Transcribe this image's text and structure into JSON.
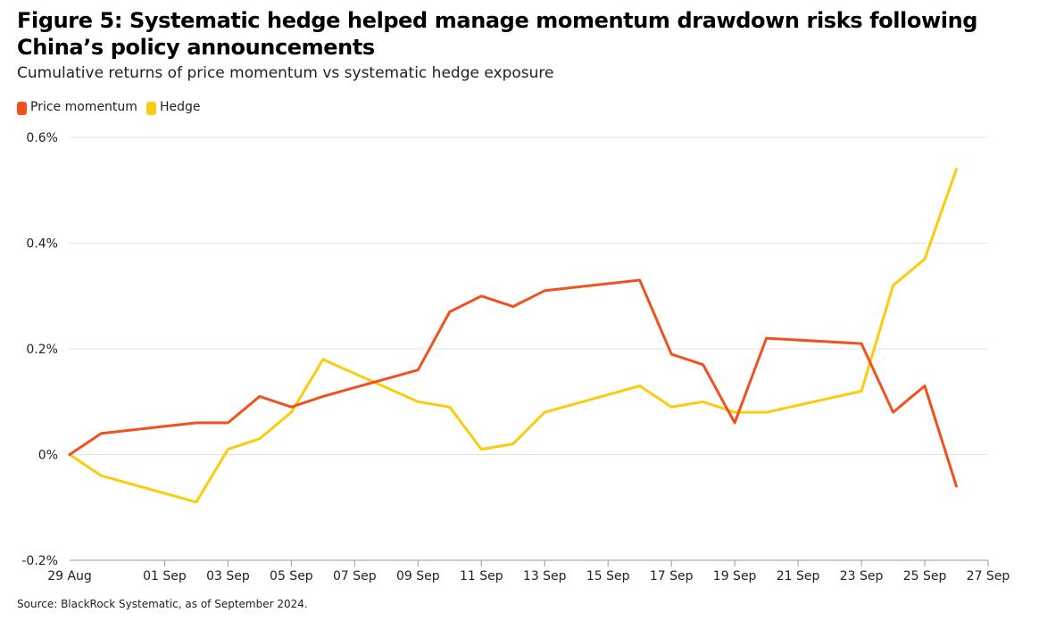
{
  "title": "Figure 5: Systematic hedge helped manage momentum drawdown risks following China’s policy announcements",
  "subtitle": "Cumulative returns of price momentum vs systematic hedge exposure",
  "source": "Source: BlackRock Systematic, as of September 2024.",
  "colors": {
    "momentum": "#f0511e",
    "hedge": "#fbcc0b",
    "grid": "#e3e3e3",
    "axis": "#9a9a9a"
  },
  "chart_data": {
    "type": "line",
    "title": "Figure 5: Systematic hedge helped manage momentum drawdown risks following China’s policy announcements",
    "subtitle": "Cumulative returns of price momentum vs systematic hedge exposure",
    "xlabel": "",
    "ylabel": "",
    "legend": "top-left",
    "grid": true,
    "ylim": [
      -0.2,
      0.6
    ],
    "xlim": [
      "2024-08-29",
      "2024-09-27"
    ],
    "yticks": [
      {
        "value": 0.6,
        "label": "0.6%"
      },
      {
        "value": 0.4,
        "label": "0.4%"
      },
      {
        "value": 0.2,
        "label": "0.2%"
      },
      {
        "value": 0.0,
        "label": "0%"
      },
      {
        "value": -0.2,
        "label": "-0.2%"
      }
    ],
    "xticks": [
      {
        "date": "2024-08-29",
        "label": "29 Aug"
      },
      {
        "date": "2024-09-01",
        "label": "01 Sep"
      },
      {
        "date": "2024-09-03",
        "label": "03 Sep"
      },
      {
        "date": "2024-09-05",
        "label": "05 Sep"
      },
      {
        "date": "2024-09-07",
        "label": "07 Sep"
      },
      {
        "date": "2024-09-09",
        "label": "09 Sep"
      },
      {
        "date": "2024-09-11",
        "label": "11 Sep"
      },
      {
        "date": "2024-09-13",
        "label": "13 Sep"
      },
      {
        "date": "2024-09-15",
        "label": "15 Sep"
      },
      {
        "date": "2024-09-17",
        "label": "17 Sep"
      },
      {
        "date": "2024-09-19",
        "label": "19 Sep"
      },
      {
        "date": "2024-09-21",
        "label": "21 Sep"
      },
      {
        "date": "2024-09-23",
        "label": "23 Sep"
      },
      {
        "date": "2024-09-25",
        "label": "25 Sep"
      },
      {
        "date": "2024-09-27",
        "label": "27 Sep"
      }
    ],
    "x": [
      "2024-08-29",
      "2024-08-30",
      "2024-09-02",
      "2024-09-03",
      "2024-09-04",
      "2024-09-05",
      "2024-09-06",
      "2024-09-09",
      "2024-09-10",
      "2024-09-11",
      "2024-09-12",
      "2024-09-13",
      "2024-09-16",
      "2024-09-17",
      "2024-09-18",
      "2024-09-19",
      "2024-09-20",
      "2024-09-23",
      "2024-09-24",
      "2024-09-25",
      "2024-09-26"
    ],
    "series": [
      {
        "name": "Price momentum",
        "color": "#f0511e",
        "values": [
          0.0,
          0.04,
          0.06,
          0.06,
          0.11,
          0.09,
          0.11,
          0.16,
          0.27,
          0.3,
          0.28,
          0.31,
          0.33,
          0.19,
          0.17,
          0.06,
          0.22,
          0.21,
          0.08,
          0.13,
          -0.06
        ]
      },
      {
        "name": "Hedge",
        "color": "#fbcc0b",
        "values": [
          0.0,
          -0.04,
          -0.09,
          0.01,
          0.03,
          0.08,
          0.18,
          0.1,
          0.09,
          0.01,
          0.02,
          0.08,
          0.13,
          0.09,
          0.1,
          0.08,
          0.08,
          0.12,
          0.32,
          0.37,
          0.54
        ]
      }
    ]
  }
}
